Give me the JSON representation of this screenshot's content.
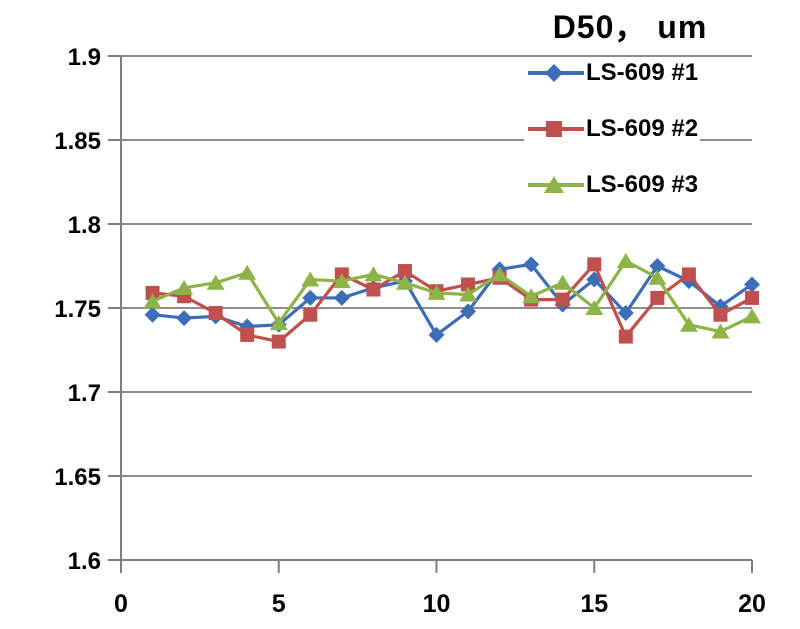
{
  "chart_data": {
    "type": "line",
    "title": "D50， um",
    "xlabel": "",
    "ylabel": "",
    "xlim": [
      0,
      20
    ],
    "ylim": [
      1.6,
      1.9
    ],
    "grid": true,
    "legend_position": "top-right",
    "x_ticks": [
      0,
      5,
      10,
      15,
      20
    ],
    "x_tick_labels": [
      "0",
      "5",
      "10",
      "15",
      "20"
    ],
    "y_ticks": [
      1.6,
      1.65,
      1.7,
      1.75,
      1.8,
      1.85,
      1.9
    ],
    "y_tick_labels": [
      "1.6",
      "1.65",
      "1.7",
      "1.75",
      "1.8",
      "1.85",
      "1.9"
    ],
    "x": [
      1,
      2,
      3,
      4,
      5,
      6,
      7,
      8,
      9,
      10,
      11,
      12,
      13,
      14,
      15,
      16,
      17,
      18,
      19,
      20
    ],
    "series": [
      {
        "name": "LS-609 #1",
        "marker": "diamond",
        "color": "#3E6DB8",
        "values": [
          1.746,
          1.744,
          1.745,
          1.739,
          1.74,
          1.756,
          1.756,
          1.762,
          1.766,
          1.734,
          1.748,
          1.773,
          1.776,
          1.752,
          1.767,
          1.747,
          1.775,
          1.766,
          1.751,
          1.764
        ]
      },
      {
        "name": "LS-609 #2",
        "marker": "square",
        "color": "#C0504D",
        "values": [
          1.759,
          1.757,
          1.747,
          1.734,
          1.73,
          1.746,
          1.77,
          1.761,
          1.772,
          1.76,
          1.764,
          1.768,
          1.755,
          1.755,
          1.776,
          1.733,
          1.756,
          1.77,
          1.746,
          1.756
        ]
      },
      {
        "name": "LS-609 #3",
        "marker": "triangle",
        "color": "#8DB446",
        "values": [
          1.754,
          1.762,
          1.765,
          1.771,
          1.741,
          1.767,
          1.766,
          1.77,
          1.765,
          1.759,
          1.758,
          1.77,
          1.757,
          1.765,
          1.75,
          1.778,
          1.768,
          1.74,
          1.736,
          1.745
        ]
      }
    ],
    "colors": {
      "grid": "#8E8E8E",
      "axis": "#7F7F7F",
      "text": "#000000",
      "background": "#FFFFFF"
    }
  }
}
